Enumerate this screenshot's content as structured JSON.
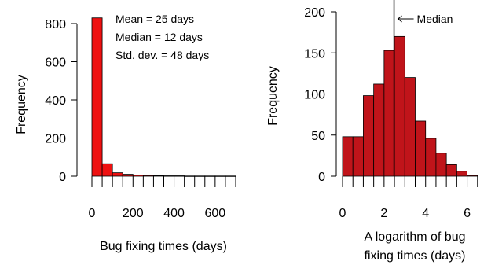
{
  "chart_data": [
    {
      "type": "bar",
      "xlabel": "Bug fixing times (days)",
      "ylabel": "Frequency",
      "xlim": [
        0,
        700
      ],
      "ylim": [
        0,
        800
      ],
      "x_ticks": [
        0,
        200,
        400,
        600
      ],
      "y_ticks": [
        0,
        200,
        400,
        600,
        800
      ],
      "bin_width": 50,
      "bins": [
        {
          "x0": 0,
          "x1": 50,
          "value": 830
        },
        {
          "x0": 50,
          "x1": 100,
          "value": 65
        },
        {
          "x0": 100,
          "x1": 150,
          "value": 18
        },
        {
          "x0": 150,
          "x1": 200,
          "value": 10
        },
        {
          "x0": 200,
          "x1": 250,
          "value": 6
        },
        {
          "x0": 250,
          "x1": 300,
          "value": 4
        },
        {
          "x0": 300,
          "x1": 350,
          "value": 3
        },
        {
          "x0": 350,
          "x1": 400,
          "value": 2
        },
        {
          "x0": 400,
          "x1": 450,
          "value": 2
        },
        {
          "x0": 450,
          "x1": 500,
          "value": 1
        },
        {
          "x0": 500,
          "x1": 550,
          "value": 1
        },
        {
          "x0": 550,
          "x1": 600,
          "value": 1
        },
        {
          "x0": 600,
          "x1": 650,
          "value": 1
        },
        {
          "x0": 650,
          "x1": 700,
          "value": 1
        }
      ],
      "annotations": [
        "Mean = 25 days",
        "Median = 12 days",
        "Std. dev. = 48 days"
      ],
      "bar_color": "#ee1111"
    },
    {
      "type": "bar",
      "xlabel": [
        "A logarithm of bug",
        "fixing times (days)"
      ],
      "ylabel": "Frequency",
      "xlim": [
        0,
        7
      ],
      "ylim": [
        0,
        200
      ],
      "x_ticks": [
        0,
        2,
        4,
        6
      ],
      "y_ticks": [
        0,
        50,
        100,
        150,
        200
      ],
      "bin_width": 0.5,
      "bins": [
        {
          "x0": 0.0,
          "x1": 0.5,
          "value": 48
        },
        {
          "x0": 0.5,
          "x1": 1.0,
          "value": 48
        },
        {
          "x0": 1.0,
          "x1": 1.5,
          "value": 98
        },
        {
          "x0": 1.5,
          "x1": 2.0,
          "value": 112
        },
        {
          "x0": 2.0,
          "x1": 2.5,
          "value": 153
        },
        {
          "x0": 2.5,
          "x1": 3.0,
          "value": 170
        },
        {
          "x0": 3.0,
          "x1": 3.5,
          "value": 120
        },
        {
          "x0": 3.5,
          "x1": 4.0,
          "value": 67
        },
        {
          "x0": 4.0,
          "x1": 4.5,
          "value": 46
        },
        {
          "x0": 4.5,
          "x1": 5.0,
          "value": 28
        },
        {
          "x0": 5.0,
          "x1": 5.5,
          "value": 14
        },
        {
          "x0": 5.5,
          "x1": 6.0,
          "value": 6
        },
        {
          "x0": 6.0,
          "x1": 6.5,
          "value": 1
        }
      ],
      "median_x": 2.48,
      "median_label": "Median",
      "bar_color": "#c0141a"
    }
  ]
}
